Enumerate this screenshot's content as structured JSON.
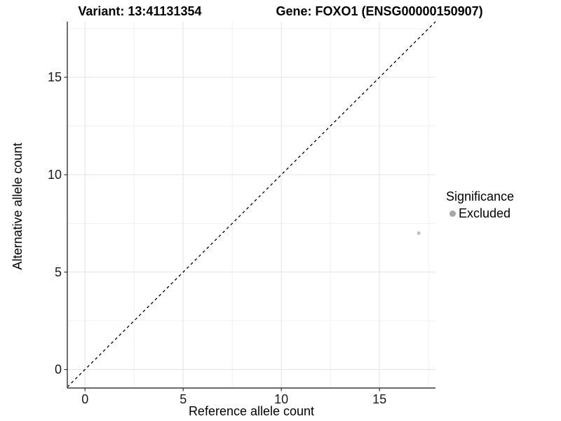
{
  "figure": {
    "title_variant": "Variant: 13:41131354",
    "title_gene": "Gene: FOXO1 (ENSG00000150907)"
  },
  "chart_data": {
    "type": "scatter",
    "title": "Variant: 13:41131354  |  Gene: FOXO1 (ENSG00000150907)",
    "xlabel": "Reference allele count",
    "ylabel": "Alternative allele count",
    "xlim": [
      -0.9,
      17.85
    ],
    "ylim": [
      -0.95,
      17.85
    ],
    "xticks": [
      0,
      5,
      10,
      15
    ],
    "yticks": [
      0,
      5,
      10,
      15
    ],
    "xminor": [
      2.5,
      7.5,
      12.5,
      17.5
    ],
    "yminor": [
      2.5,
      7.5,
      12.5,
      17.5
    ],
    "grid": "major+minor",
    "series": [
      {
        "name": "Excluded",
        "color": "#c0c0c0",
        "point_radius": 2.5,
        "points": [
          [
            17,
            7
          ]
        ]
      }
    ],
    "reference_line": {
      "type": "identity y=x",
      "style": "dashed",
      "color": "#000000"
    },
    "legend": {
      "title": "Significance",
      "position": "right",
      "entries": [
        {
          "label": "Excluded",
          "color": "#a8a8a8"
        }
      ]
    }
  },
  "colors": {
    "background": "#ffffff",
    "grid_major": "#e3e3e3",
    "grid_minor": "#f1f1f1",
    "axis_line": "#545454",
    "tick_mark": "#333333",
    "tick_label": "#1a1a1a",
    "text": "#000000"
  }
}
